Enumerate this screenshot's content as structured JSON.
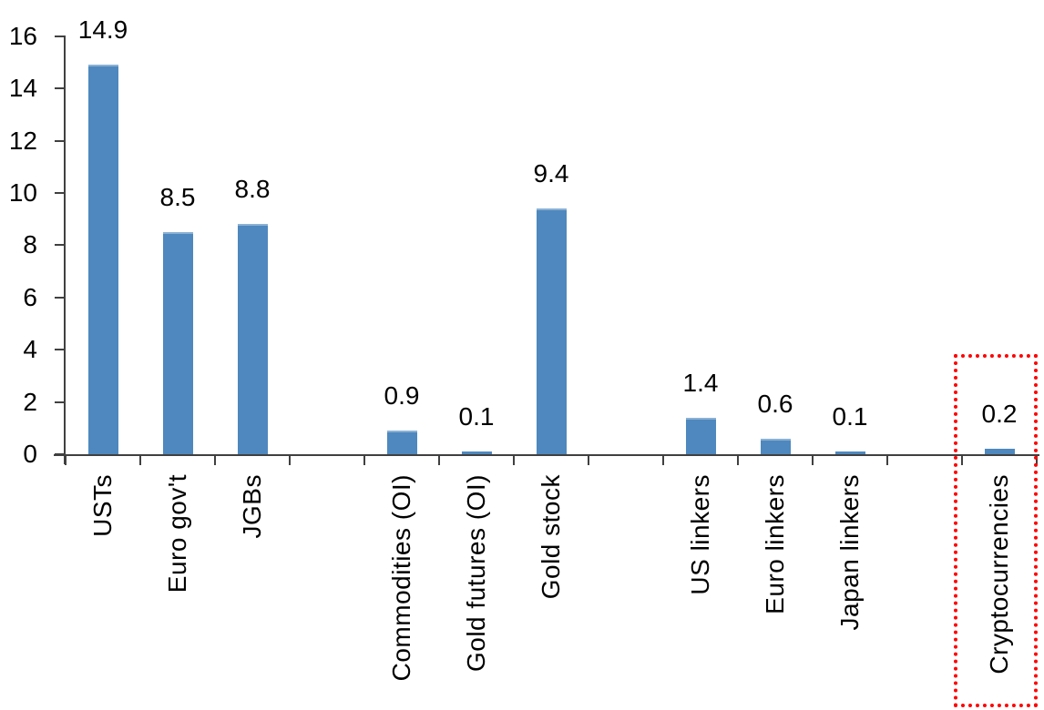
{
  "chart_data": {
    "type": "bar",
    "title": "",
    "xlabel": "",
    "ylabel": "",
    "categories": [
      "USTs",
      "Euro gov't",
      "JGBs",
      "Commodities (OI)",
      "Gold futures (OI)",
      "Gold stock",
      "US linkers",
      "Euro linkers",
      "Japan linkers",
      "Cryptocurrencies"
    ],
    "values": [
      14.9,
      8.5,
      8.8,
      0.9,
      0.1,
      9.4,
      1.4,
      0.6,
      0.1,
      0.2
    ],
    "data_labels": [
      "14.9",
      "8.5",
      "8.8",
      "0.9",
      "0.1",
      "9.4",
      "1.4",
      "0.6",
      "0.1",
      "0.2"
    ],
    "slots": [
      0,
      1,
      2,
      4,
      5,
      6,
      8,
      9,
      10,
      12
    ],
    "total_slots": 13,
    "group_gaps_after": [
      "JGBs",
      "Gold stock",
      "Japan linkers"
    ],
    "y_ticks": [
      0,
      2,
      4,
      6,
      8,
      10,
      12,
      14,
      16
    ],
    "y_tick_labels": [
      "0",
      "2",
      "4",
      "6",
      "8",
      "10",
      "12",
      "14",
      "16"
    ],
    "ylim": [
      0,
      16
    ],
    "grid": "off",
    "legend": "none",
    "colors": {
      "bar": "#4E88BE",
      "axis": "#404040",
      "text": "#000000",
      "highlight": "#FF0000"
    },
    "highlight": {
      "category": "Cryptocurrencies",
      "value_label": "0.2",
      "shape": "red-dotted-rectangle",
      "color": "#FF0000"
    }
  }
}
